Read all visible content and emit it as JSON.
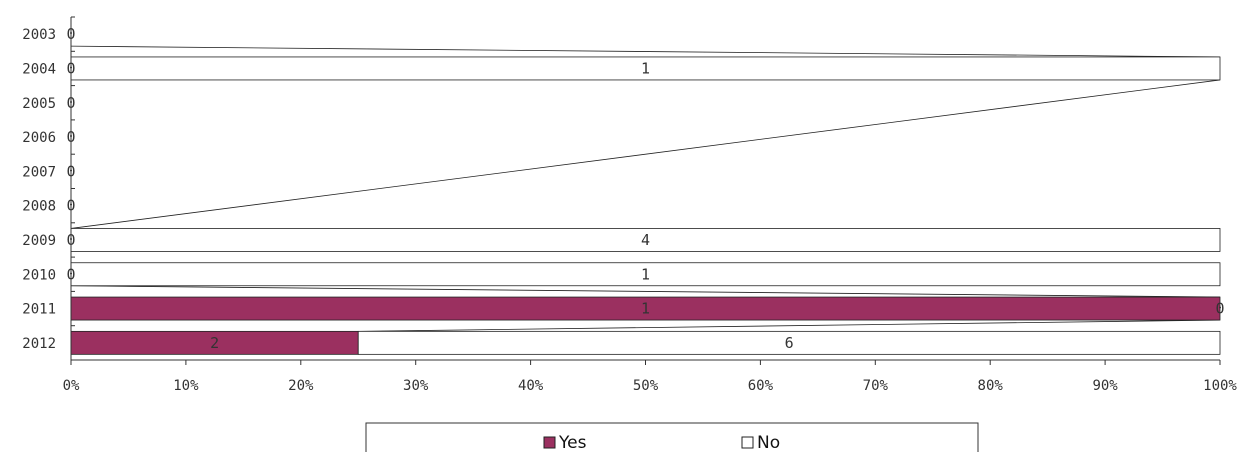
{
  "chart_data": {
    "type": "bar",
    "orientation": "horizontal",
    "stacking": "percent",
    "categories": [
      "2003",
      "2004",
      "2005",
      "2006",
      "2007",
      "2008",
      "2009",
      "2010",
      "2011",
      "2012"
    ],
    "series": [
      {
        "name": "Yes",
        "color": "#9b3060",
        "values": [
          0,
          0,
          0,
          0,
          0,
          0,
          0,
          0,
          1,
          2
        ],
        "labels": [
          "0",
          "0",
          "0",
          "0",
          "0",
          "0",
          "0",
          "0",
          "1",
          "2"
        ]
      },
      {
        "name": "No",
        "color": "#ffffff",
        "values": [
          0,
          1,
          0,
          0,
          0,
          0,
          4,
          1,
          0,
          6
        ],
        "labels": [
          "",
          "1",
          "",
          "",
          "",
          "",
          "4",
          "1",
          "0",
          "6"
        ]
      }
    ],
    "x_ticks": [
      "0%",
      "10%",
      "20%",
      "30%",
      "40%",
      "50%",
      "60%",
      "70%",
      "80%",
      "90%",
      "100%"
    ],
    "xlim": [
      0,
      100
    ],
    "title": "",
    "xlabel": "",
    "ylabel": "",
    "grid": false,
    "legend_position": "bottom"
  }
}
